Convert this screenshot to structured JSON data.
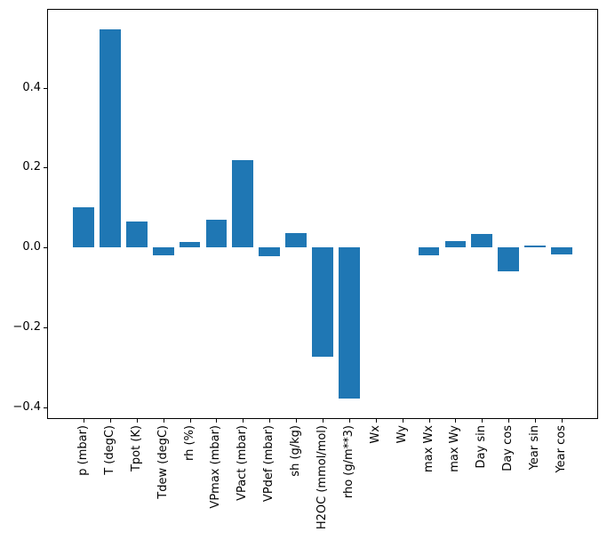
{
  "figure": {
    "background": "#ffffff",
    "plot_background": "#ffffff",
    "bar_color": "#1f77b4",
    "axis_color": "#000000",
    "tick_label_color": "#000000"
  },
  "chart_data": {
    "type": "bar",
    "title": "",
    "xlabel": "",
    "ylabel": "",
    "categories": [
      "p (mbar)",
      "T (degC)",
      "Tpot (K)",
      "Tdew (degC)",
      "rh (%)",
      "VPmax (mbar)",
      "VPact (mbar)",
      "VPdef (mbar)",
      "sh (g/kg)",
      "H2OC (mmol/mol)",
      "rho (g/m**3)",
      "Wx",
      "Wy",
      "max Wx",
      "max Wy",
      "Day sin",
      "Day cos",
      "Year sin",
      "Year cos"
    ],
    "values": [
      0.1,
      0.547,
      0.066,
      -0.019,
      0.015,
      0.07,
      0.219,
      -0.021,
      0.036,
      -0.273,
      -0.378,
      0.0,
      0.0,
      -0.02,
      0.017,
      0.035,
      -0.059,
      0.004,
      -0.017
    ],
    "ylim": [
      -0.427,
      0.595
    ],
    "xlim": [
      -1.34,
      19.34
    ],
    "yticks": [
      0.4,
      0.2,
      0.0,
      -0.2,
      -0.4
    ],
    "ytick_labels": [
      "0.4",
      "0.2",
      "0.0",
      "−0.2",
      "−0.4"
    ],
    "xtick_rotation_deg": 90,
    "bar_width_fraction": 0.8,
    "grid": false,
    "legend_position": "none"
  }
}
